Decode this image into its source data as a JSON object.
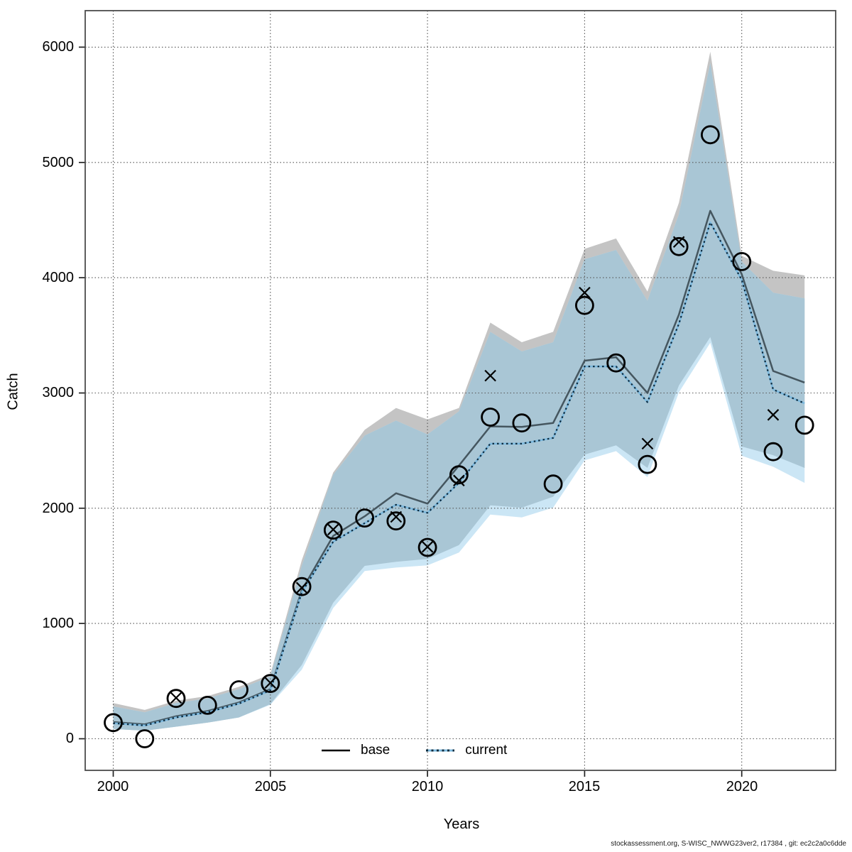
{
  "figure": {
    "ylabel": "Catch",
    "xlabel": "Years",
    "footer": "stockassessment.org, S-WISC_NWWG23ver2, r17384 , git: ec2c2a0c6dde"
  },
  "legend": {
    "base_label": "base",
    "current_label": "current"
  },
  "chart_data": {
    "type": "line",
    "title": "",
    "xlabel": "Years",
    "ylabel": "Catch",
    "grid": "dotted",
    "legend_position": "bottom-inside",
    "xlim": [
      1999.1,
      2023.0
    ],
    "ylim": [
      -270,
      6320
    ],
    "xticks": [
      2000,
      2005,
      2010,
      2015,
      2020
    ],
    "yticks": [
      0,
      1000,
      2000,
      3000,
      4000,
      5000,
      6000
    ],
    "x": [
      2000,
      2001,
      2002,
      2003,
      2004,
      2005,
      2006,
      2007,
      2008,
      2009,
      2010,
      2011,
      2012,
      2013,
      2014,
      2015,
      2016,
      2017,
      2018,
      2019,
      2020,
      2021,
      2022
    ],
    "series": [
      {
        "name": "base",
        "role": "line",
        "style": "solid",
        "values": [
          145,
          125,
          195,
          240,
          315,
          430,
          1290,
          1760,
          1930,
          2130,
          2040,
          2370,
          2710,
          2705,
          2740,
          3280,
          3310,
          3000,
          3680,
          4580,
          4030,
          3190,
          3090
        ]
      },
      {
        "name": "current",
        "role": "line",
        "style": "dotted",
        "values": [
          135,
          115,
          185,
          230,
          305,
          420,
          1270,
          1710,
          1870,
          2030,
          1960,
          2220,
          2560,
          2560,
          2610,
          3230,
          3230,
          2920,
          3600,
          4480,
          3980,
          3030,
          2910
        ]
      },
      {
        "name": "base_ci_high",
        "role": "band-upper",
        "values": [
          310,
          250,
          330,
          370,
          450,
          560,
          1550,
          2310,
          2680,
          2870,
          2770,
          2870,
          3610,
          3440,
          3530,
          4250,
          4340,
          3880,
          4650,
          5960,
          4190,
          4060,
          4020
        ]
      },
      {
        "name": "base_ci_low",
        "role": "band-lower",
        "values": [
          85,
          70,
          105,
          140,
          185,
          300,
          640,
          1180,
          1500,
          1535,
          1560,
          1680,
          2025,
          2005,
          2100,
          2465,
          2545,
          2350,
          3065,
          3485,
          2535,
          2460,
          2350
        ]
      },
      {
        "name": "current_ci_high",
        "role": "band-upper",
        "values": [
          280,
          230,
          310,
          350,
          430,
          540,
          1500,
          2290,
          2630,
          2760,
          2640,
          2840,
          3530,
          3360,
          3440,
          4160,
          4240,
          3800,
          4550,
          5860,
          4140,
          3870,
          3820
        ]
      },
      {
        "name": "current_ci_low",
        "role": "band-lower",
        "values": [
          85,
          70,
          105,
          140,
          185,
          295,
          600,
          1135,
          1455,
          1485,
          1505,
          1615,
          1945,
          1920,
          2005,
          2415,
          2495,
          2270,
          3005,
          3435,
          2455,
          2360,
          2220
        ]
      },
      {
        "name": "observations_circle",
        "role": "scatter",
        "marker": "circle",
        "values": [
          140,
          0,
          350,
          290,
          425,
          480,
          1320,
          1810,
          1915,
          1890,
          1660,
          2290,
          2790,
          2740,
          2210,
          3760,
          3260,
          2380,
          4270,
          5240,
          4140,
          2490,
          2720
        ]
      },
      {
        "name": "observations_x",
        "role": "scatter",
        "marker": "x",
        "values": [
          null,
          null,
          355,
          null,
          null,
          485,
          1310,
          1815,
          null,
          1925,
          1665,
          2240,
          3150,
          null,
          null,
          3870,
          null,
          2560,
          4310,
          null,
          null,
          2810,
          null
        ]
      }
    ],
    "colors": {
      "base_band": "#c4c4c4",
      "current_band_only": "#cbe6f5",
      "band_overlap": "#a9c6d5",
      "base_line": "#45565f",
      "current_line": "#0d2c40",
      "current_line_casing": "#7db9de",
      "marker": "#000000",
      "gridline": "#555555",
      "frame": "#4d4d4d"
    }
  }
}
